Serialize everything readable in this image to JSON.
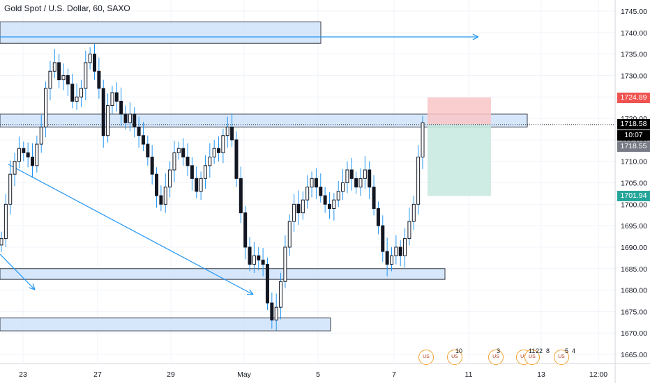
{
  "title": "Gold Spot / U.S. Dollar, 60, SAXO",
  "chart_data": {
    "type": "candlestick",
    "title": "Gold Spot / U.S. Dollar, 60, SAXO",
    "y_ticks": [
      "1665.00",
      "1670.00",
      "1675.00",
      "1680.00",
      "1685.00",
      "1690.00",
      "1695.00",
      "1700.00",
      "1705.00",
      "1710.00",
      "1715.00",
      "1720.00",
      "1725.00",
      "1730.00",
      "1735.00",
      "1740.00",
      "1745.00"
    ],
    "x_ticks": [
      "23",
      "27",
      "29",
      "May",
      "5",
      "7",
      "11",
      "13",
      "12:00"
    ],
    "price_labels": {
      "stop": "1724.89",
      "last": "1718.58",
      "countdown": "10:07",
      "ref": "1718.55",
      "target": "1701.94"
    },
    "closes": [
      1692,
      1700,
      1707,
      1710,
      1713,
      1712,
      1711,
      1709,
      1714,
      1718,
      1727,
      1731,
      1733,
      1729,
      1730,
      1728,
      1724,
      1725,
      1727,
      1733,
      1735,
      1731,
      1727,
      1716,
      1723,
      1726,
      1724,
      1721,
      1719,
      1721,
      1718,
      1716,
      1714,
      1711,
      1707,
      1702,
      1700,
      1704,
      1708,
      1712,
      1713,
      1711,
      1709,
      1706,
      1703,
      1706,
      1709,
      1711,
      1713,
      1712,
      1716,
      1718,
      1715,
      1706,
      1698,
      1690,
      1686,
      1688,
      1687,
      1686,
      1677,
      1673,
      1676,
      1682,
      1690,
      1696,
      1700,
      1698,
      1701,
      1704,
      1706,
      1704,
      1702,
      1700,
      1699,
      1701,
      1703,
      1705,
      1708,
      1706,
      1704,
      1706,
      1708,
      1704,
      1699,
      1695,
      1689,
      1686,
      1688,
      1690,
      1688,
      1692,
      1696,
      1700,
      1711,
      1719
    ],
    "rects": [
      {
        "kind": "zone",
        "y1": 1742.5,
        "y2": 1737.5
      },
      {
        "kind": "zone",
        "y1": 1721,
        "y2": 1718
      },
      {
        "kind": "zone",
        "y1": 1685,
        "y2": 1682.5
      },
      {
        "kind": "zone",
        "y1": 1673.5,
        "y2": 1670.5
      },
      {
        "kind": "stop",
        "y1": 1724.89,
        "y2": 1718.58
      },
      {
        "kind": "target",
        "y1": 1718.58,
        "y2": 1701.94
      }
    ],
    "events": [
      "10",
      "3",
      "11",
      "22",
      "8",
      "5",
      "4"
    ]
  },
  "colors": {
    "candle": "#131722",
    "zone_fill": "#d4e6fb",
    "zone_border": "#2a2e39",
    "line": "#2196f3",
    "stop_fill": "#f9c6c6",
    "target_fill": "#c5e9df",
    "stop_label": "#ef5350",
    "target_label": "#26a69a",
    "last_label": "#000000",
    "ref_label": "#787b86"
  }
}
